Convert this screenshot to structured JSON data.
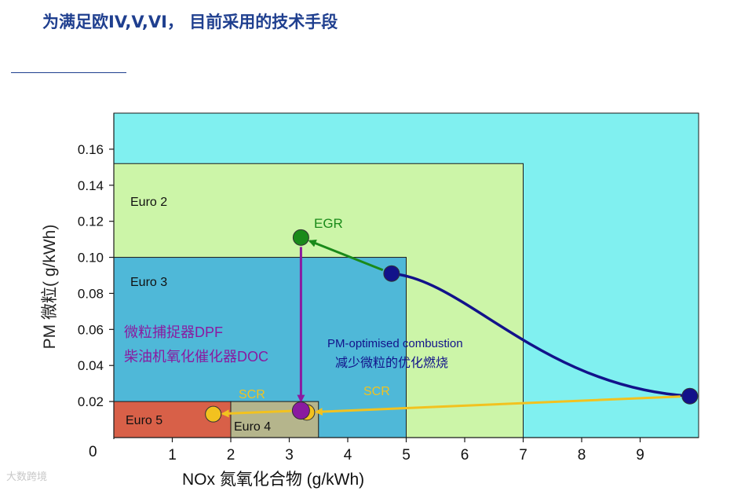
{
  "slide": {
    "title": "为满足欧IV,V,VI， 目前采用的技术手段",
    "watermark": "大数跨境"
  },
  "colors": {
    "euro1_fill": "#80f0f0",
    "euro2_fill": "#ccf5a8",
    "euro3_fill": "#4fb8d8",
    "euro4_fill": "#b5b58c",
    "euro5_fill": "#d86048",
    "optimised_curve": "#12128a",
    "egr": "#1a8a1a",
    "dpf": "#8a1aa0",
    "scr": "#f2c21f",
    "ylabel": "#222222"
  },
  "chart_data": {
    "type": "scatter",
    "title": "",
    "xlabel": "NOx 氮氧化合物  (g/kWh)",
    "ylabel": "PM 微粒( g/kWh)",
    "xlim": [
      0,
      10
    ],
    "ylim": [
      0,
      0.18
    ],
    "x_ticks": [
      "1",
      "2",
      "3",
      "4",
      "5",
      "6",
      "7",
      "8",
      "9"
    ],
    "x_tick_values": [
      1,
      2,
      3,
      4,
      5,
      6,
      7,
      8,
      9
    ],
    "x_origin_label": "0",
    "y_ticks": [
      "0.02",
      "0.04",
      "0.06",
      "0.08",
      "0.10",
      "0.12",
      "0.14",
      "0.16"
    ],
    "y_tick_values": [
      0.02,
      0.04,
      0.06,
      0.08,
      0.1,
      0.12,
      0.14,
      0.16
    ],
    "grid": false,
    "regions": [
      {
        "name": "Euro 1",
        "label": "",
        "nox_limit": 10,
        "pm_limit": 0.18,
        "fill": "euro1_fill"
      },
      {
        "name": "Euro 2",
        "label": "Euro 2",
        "nox_limit": 7.0,
        "pm_limit": 0.152,
        "fill": "euro2_fill"
      },
      {
        "name": "Euro 3",
        "label": "Euro 3",
        "nox_limit": 5.0,
        "pm_limit": 0.1,
        "fill": "euro3_fill"
      },
      {
        "name": "Euro 4",
        "label": "Euro 4",
        "nox_limit": 3.5,
        "pm_limit": 0.02,
        "nox_start": 2.0,
        "fill": "euro4_fill"
      },
      {
        "name": "Euro 5",
        "label": "Euro 5",
        "nox_limit": 2.0,
        "pm_limit": 0.02,
        "fill": "euro5_fill"
      }
    ],
    "points": [
      {
        "name": "optimised-start",
        "x": 9.85,
        "y": 0.023,
        "color": "optimised_curve"
      },
      {
        "name": "optimised-end",
        "x": 4.75,
        "y": 0.091,
        "color": "optimised_curve"
      },
      {
        "name": "egr-end",
        "x": 3.2,
        "y": 0.111,
        "color": "egr"
      },
      {
        "name": "dpf-end",
        "x": 3.2,
        "y": 0.015,
        "color": "dpf"
      },
      {
        "name": "scr-end-a",
        "x": 3.3,
        "y": 0.014,
        "color": "scr"
      },
      {
        "name": "scr-end-b",
        "x": 1.7,
        "y": 0.013,
        "color": "scr"
      }
    ],
    "curve": {
      "name": "PM-optimised combustion",
      "from": [
        9.85,
        0.023
      ],
      "to": [
        4.75,
        0.091
      ],
      "color": "optimised_curve"
    },
    "arrows": [
      {
        "name": "EGR",
        "from": [
          4.75,
          0.091
        ],
        "to": [
          3.2,
          0.111
        ],
        "color": "egr"
      },
      {
        "name": "DPF+DOC",
        "from": [
          3.2,
          0.111
        ],
        "to": [
          3.2,
          0.015
        ],
        "color": "dpf"
      },
      {
        "name": "SCR",
        "from": [
          9.85,
          0.023
        ],
        "to": [
          3.3,
          0.014
        ],
        "color": "scr"
      },
      {
        "name": "SCR",
        "from": [
          3.2,
          0.015
        ],
        "to": [
          1.7,
          0.013
        ],
        "color": "scr"
      }
    ],
    "annotations": {
      "egr": "EGR",
      "dpf": "微粒捕捉器DPF",
      "doc": "柴油机氧化催化器DOC",
      "optimised_en": "PM-optimised combustion",
      "optimised_cn": "减少微粒的优化燃烧",
      "scr_left": "SCR",
      "scr_right": "SCR"
    }
  }
}
